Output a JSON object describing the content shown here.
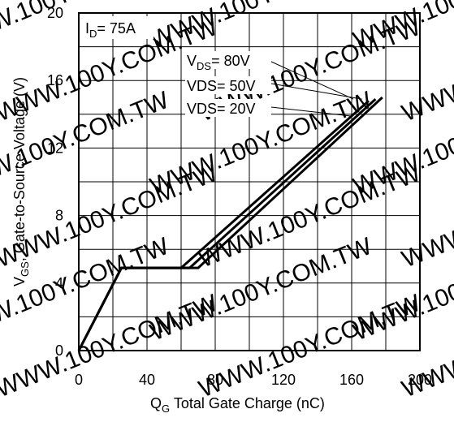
{
  "chart_data": {
    "type": "line",
    "xlabel": {
      "main": "Q",
      "sub": "G",
      "rest": "Total Gate Charge (nC)"
    },
    "ylabel": {
      "main": "V",
      "sub": "GS",
      "rest": ", Gate-to-Source Voltage (V)"
    },
    "xlim": [
      0,
      200
    ],
    "ylim": [
      0,
      20
    ],
    "x_ticks": [
      0,
      40,
      80,
      120,
      160,
      200
    ],
    "y_ticks": [
      0,
      4,
      8,
      12,
      16,
      20
    ],
    "x_grid_step": 20,
    "y_grid_step": 2,
    "grid": true,
    "condition": {
      "main": "I",
      "sub": "D",
      "rest": "= 75A"
    },
    "series": [
      {
        "name": "VDS= 20V",
        "points": [
          [
            0,
            0
          ],
          [
            25,
            4.9
          ],
          [
            60,
            4.9
          ],
          [
            170,
            14.8
          ]
        ]
      },
      {
        "name": "VDS= 50V",
        "points": [
          [
            0,
            0
          ],
          [
            25,
            4.9
          ],
          [
            65,
            4.9
          ],
          [
            174,
            14.9
          ]
        ]
      },
      {
        "name": "VDS= 80V",
        "points": [
          [
            0,
            0
          ],
          [
            25,
            4.9
          ],
          [
            70,
            4.9
          ],
          [
            178,
            15.0
          ]
        ]
      }
    ],
    "labels": [
      {
        "main": "V",
        "sub": "DS",
        "rest": "= 80V",
        "anchor": [
          161,
          14.9
        ]
      },
      {
        "main": "VDS= 50V",
        "sub": "",
        "rest": "",
        "anchor": [
          166,
          14.9
        ]
      },
      {
        "main": "VDS= 20V",
        "sub": "",
        "rest": "",
        "anchor": [
          159,
          13.9
        ]
      }
    ],
    "watermark": "WWW.100Y.COM.TW"
  }
}
